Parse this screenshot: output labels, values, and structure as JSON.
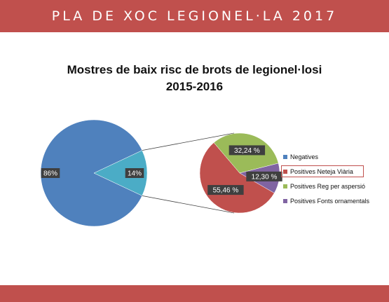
{
  "banner": {
    "title": "PLA DE XOC LEGIONEL·LA 2017"
  },
  "colors": {
    "band": "#c0504d",
    "negatives": "#4f81bd",
    "positives": "#4bacc6",
    "neteja": "#c0504d",
    "reg": "#9bbb59",
    "fonts": "#8064a2",
    "label_bg": "#3f3f3f"
  },
  "chart_data": {
    "type": "pie",
    "title": "Mostres de baix risc de brots de legionel·losi",
    "subtitle": "2015-2016",
    "main_pie": {
      "slices": [
        {
          "label": "86%",
          "value": 86
        },
        {
          "label": "14%",
          "value": 14
        }
      ]
    },
    "breakdown_pie": {
      "slices": [
        {
          "name": "Positives Neteja Viària",
          "label": "55,46 %",
          "value": 55.46
        },
        {
          "name": "Positives Reg per aspersió",
          "label": "32,24 %",
          "value": 32.24
        },
        {
          "name": "Positives Fonts ornamentals",
          "label": "12,30 %",
          "value": 12.3
        }
      ]
    },
    "legend": [
      {
        "label": "Negatives",
        "color": "#4f81bd"
      },
      {
        "label": "Positives Neteja Viària",
        "color": "#c0504d",
        "highlighted": true
      },
      {
        "label": "Positives Reg per aspersió",
        "color": "#9bbb59"
      },
      {
        "label": "Positives Fonts ornamentals",
        "color": "#8064a2"
      }
    ],
    "legend_position": "right"
  }
}
